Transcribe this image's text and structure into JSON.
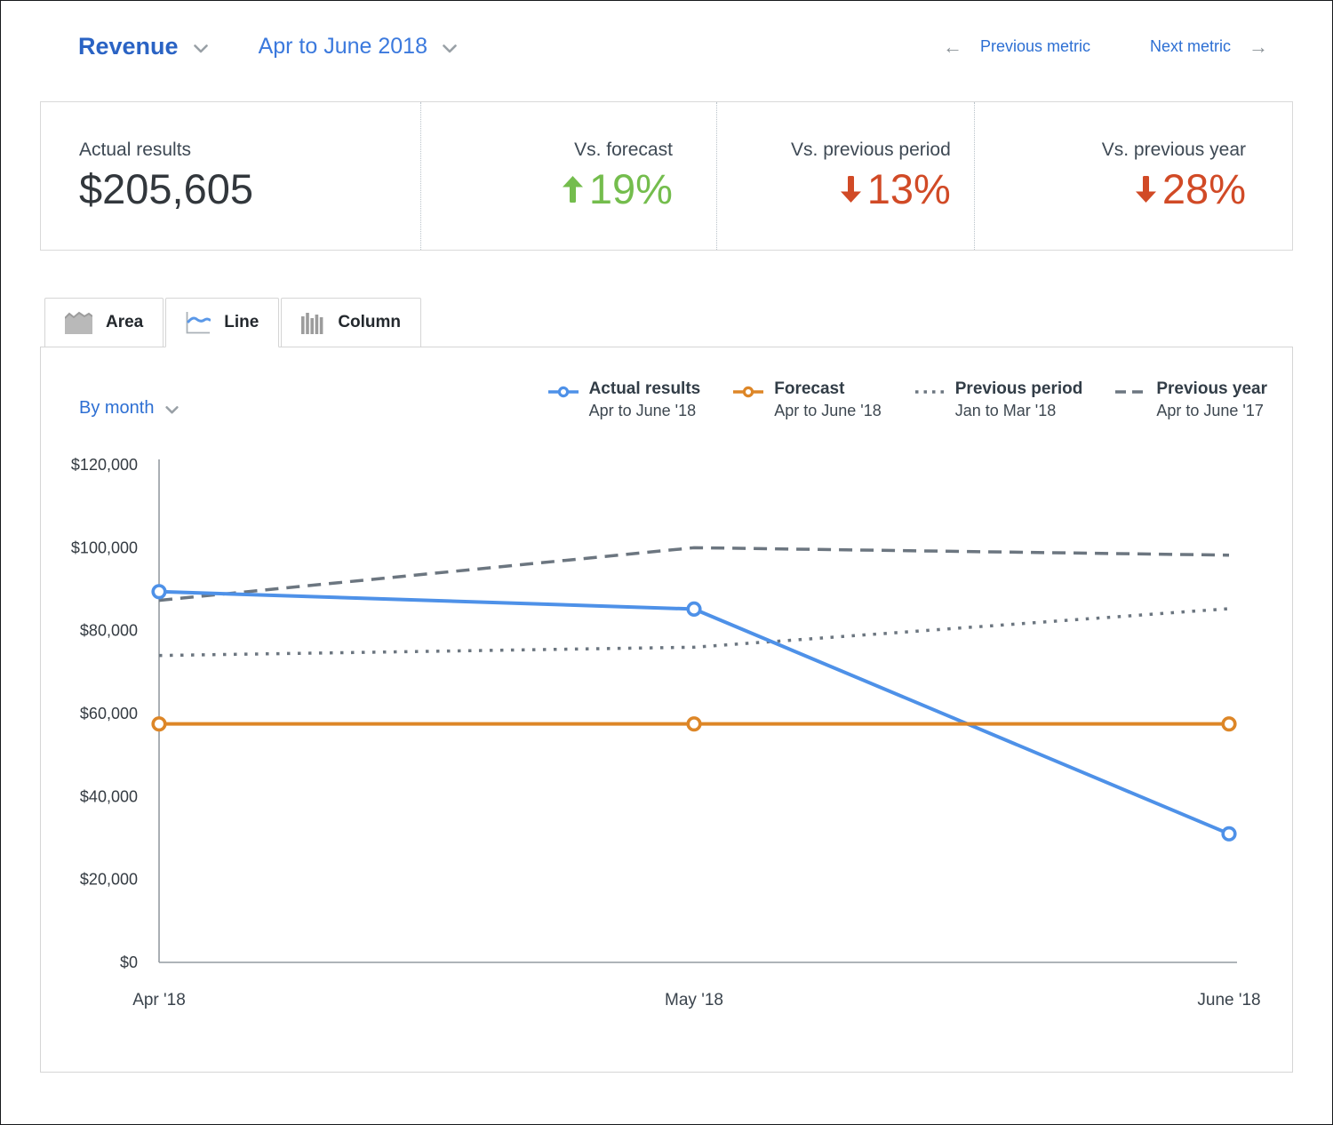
{
  "header": {
    "metric_label": "Revenue",
    "period_label": "Apr to June 2018",
    "prev_metric_label": "Previous metric",
    "next_metric_label": "Next metric",
    "prev_arrow": "←",
    "next_arrow": "→"
  },
  "stats": {
    "items": [
      {
        "label": "Actual results",
        "value": "$205,605",
        "direction": "none",
        "sentiment": "neutral"
      },
      {
        "label": "Vs. forecast",
        "value": "19%",
        "direction": "up",
        "sentiment": "positive"
      },
      {
        "label": "Vs. previous period",
        "value": "13%",
        "direction": "down",
        "sentiment": "negative"
      },
      {
        "label": "Vs. previous year",
        "value": "28%",
        "direction": "down",
        "sentiment": "negative"
      }
    ]
  },
  "tabs": [
    {
      "label": "Area",
      "icon": "area-icon",
      "active": false
    },
    {
      "label": "Line",
      "icon": "line-icon",
      "active": true
    },
    {
      "label": "Column",
      "icon": "column-icon",
      "active": false
    }
  ],
  "controls": {
    "group_by_label": "By month"
  },
  "legend": [
    {
      "title": "Actual results",
      "subtitle": "Apr to June '18",
      "style": "solid",
      "color": "#4e91e8"
    },
    {
      "title": "Forecast",
      "subtitle": "Apr to June '18",
      "style": "solid",
      "color": "#dd8627"
    },
    {
      "title": "Previous period",
      "subtitle": "Jan to Mar '18",
      "style": "dotted",
      "color": "#6c7680"
    },
    {
      "title": "Previous year",
      "subtitle": "Apr to June '17",
      "style": "dashed",
      "color": "#6c7680"
    }
  ],
  "chart_data": {
    "type": "line",
    "x": [
      "Apr '18",
      "May '18",
      "June '18"
    ],
    "series": [
      {
        "name": "Actual results",
        "values": [
          89400,
          85200,
          31000
        ],
        "style": "solid",
        "color": "#4e91e8",
        "markers": true
      },
      {
        "name": "Forecast",
        "values": [
          57500,
          57500,
          57500
        ],
        "style": "solid",
        "color": "#dd8627",
        "markers": true
      },
      {
        "name": "Previous period",
        "values": [
          74000,
          76000,
          85300
        ],
        "style": "dotted",
        "color": "#6c7680",
        "markers": false
      },
      {
        "name": "Previous year",
        "values": [
          87300,
          100000,
          98200
        ],
        "style": "dashed",
        "color": "#6c7680",
        "markers": false
      }
    ],
    "title": "Revenue — Apr to June 2018",
    "xlabel": "",
    "ylabel": "",
    "ylim": [
      0,
      120000
    ],
    "y_ticks": [
      "$120,000",
      "$100,000",
      "$80,000",
      "$60,000",
      "$40,000",
      "$20,000",
      "$0"
    ],
    "grid": false,
    "legend_position": "top-right"
  },
  "colors": {
    "positive": "#74bd4d",
    "negative": "#d14a26",
    "axis": "#949ba1",
    "comparison": "#6c7680",
    "link": "#2d6fd3"
  }
}
